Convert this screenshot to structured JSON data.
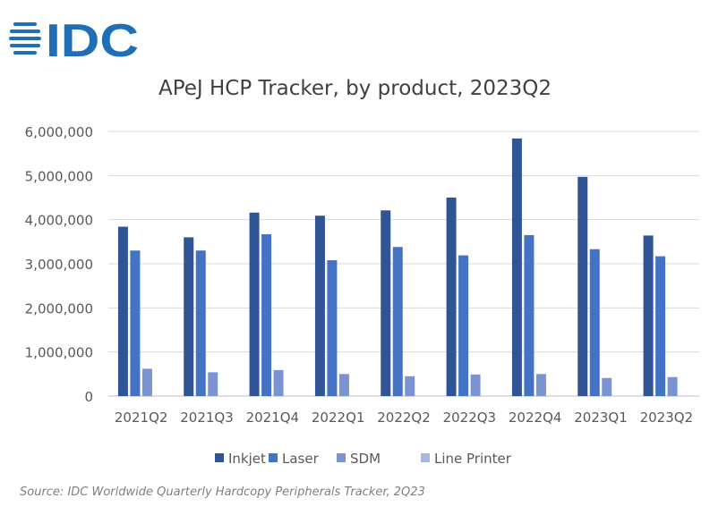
{
  "logo_text": "IDC",
  "source": "Source: IDC Worldwide Quarterly Hardcopy Peripherals Tracker, 2Q23",
  "chart_data": {
    "type": "bar",
    "title": "APeJ HCP Tracker, by product, 2023Q2",
    "xlabel": "",
    "ylabel": "",
    "ylim": [
      0,
      6000000
    ],
    "yticks": [
      0,
      1000000,
      2000000,
      3000000,
      4000000,
      5000000,
      6000000
    ],
    "ytick_labels": [
      "0",
      "1,000,000",
      "2,000,000",
      "3,000,000",
      "4,000,000",
      "5,000,000",
      "6,000,000"
    ],
    "grid": true,
    "legend": "bottom",
    "categories": [
      "2021Q2",
      "2021Q3",
      "2021Q4",
      "2022Q1",
      "2022Q2",
      "2022Q3",
      "2022Q4",
      "2023Q1",
      "2023Q2"
    ],
    "series": [
      {
        "name": "Inkjet",
        "color": "#2f5597",
        "values": [
          3840000,
          3600000,
          4160000,
          4090000,
          4210000,
          4500000,
          5840000,
          4970000,
          3640000
        ]
      },
      {
        "name": "Laser",
        "color": "#4472c4",
        "values": [
          3300000,
          3300000,
          3670000,
          3080000,
          3380000,
          3190000,
          3650000,
          3330000,
          3170000
        ]
      },
      {
        "name": "SDM",
        "color": "#7b93d1",
        "values": [
          620000,
          540000,
          590000,
          500000,
          450000,
          490000,
          500000,
          410000,
          430000
        ]
      },
      {
        "name": "Line Printer",
        "color": "#a9b8e0",
        "values": [
          0,
          0,
          0,
          0,
          0,
          0,
          0,
          0,
          0
        ]
      }
    ]
  }
}
